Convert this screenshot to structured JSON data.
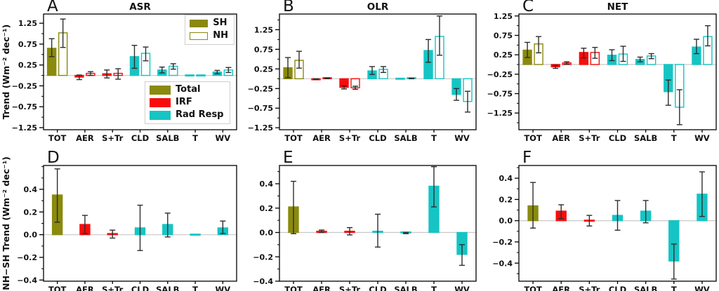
{
  "figure": {
    "background": "#ffffff"
  },
  "colors": {
    "total": "#8a8a0e",
    "irf": "#f80c0c",
    "rad_resp": "#16c4c4",
    "error": "#2e2e2e",
    "zero_line": "#c8c8c8",
    "spine": "#000000"
  },
  "legends": {
    "hemisphere": {
      "items": [
        {
          "label": "SH",
          "style": "filled"
        },
        {
          "label": "NH",
          "style": "open"
        }
      ]
    },
    "components": {
      "items": [
        {
          "label": "Total",
          "color": "total"
        },
        {
          "label": "IRF",
          "color": "irf"
        },
        {
          "label": "Rad Resp",
          "color": "rad_resp"
        }
      ]
    }
  },
  "chart_data": [
    {
      "id": "A",
      "letter": "A",
      "title": "ASR",
      "type": "bar",
      "ylabel": "Trend (Wm⁻² dec⁻¹)",
      "ylim": [
        -1.3,
        1.47
      ],
      "yticks": [
        1.25,
        0.75,
        0.25,
        -0.25,
        -0.75,
        -1.25
      ],
      "tick_decimals": 2,
      "minor_step": 0.25,
      "categories": [
        "TOT",
        "AER",
        "S+Tr",
        "CLD",
        "SALB",
        "T",
        "WV"
      ],
      "bar_color_keys": [
        "total",
        "irf",
        "irf",
        "rad_resp",
        "rad_resp",
        "rad_resp",
        "rad_resp"
      ],
      "series": [
        {
          "name": "SH",
          "style": "filled",
          "values": [
            0.65,
            -0.04,
            0.04,
            0.45,
            0.13,
            0.0,
            0.08
          ],
          "err_lo": [
            0.45,
            -0.1,
            -0.06,
            0.17,
            0.06,
            0.0,
            0.04
          ],
          "err_hi": [
            0.88,
            0.01,
            0.13,
            0.72,
            0.2,
            0.0,
            0.12
          ]
        },
        {
          "name": "NH",
          "style": "open",
          "values": [
            1.02,
            0.05,
            0.05,
            0.53,
            0.22,
            0.0,
            0.13
          ],
          "err_lo": [
            0.67,
            0.0,
            -0.09,
            0.35,
            0.15,
            0.0,
            0.07
          ],
          "err_hi": [
            1.35,
            0.09,
            0.16,
            0.68,
            0.28,
            0.0,
            0.19
          ]
        }
      ]
    },
    {
      "id": "B",
      "letter": "B",
      "title": "OLR",
      "type": "bar",
      "ylabel": "",
      "ylim": [
        -1.3,
        1.65
      ],
      "yticks": [
        1.25,
        0.75,
        0.25,
        -0.25,
        -0.75,
        -1.25
      ],
      "tick_decimals": 2,
      "minor_step": 0.25,
      "categories": [
        "TOT",
        "AER",
        "S+Tr",
        "CLD",
        "SALB",
        "T",
        "WV"
      ],
      "bar_color_keys": [
        "total",
        "irf",
        "irf",
        "rad_resp",
        "rad_resp",
        "rad_resp",
        "rad_resp"
      ],
      "series": [
        {
          "name": "SH",
          "style": "filled",
          "values": [
            0.28,
            -0.01,
            -0.22,
            0.2,
            0.0,
            0.72,
            -0.4
          ],
          "err_lo": [
            0.03,
            -0.02,
            -0.26,
            0.11,
            0.0,
            0.42,
            -0.55
          ],
          "err_hi": [
            0.54,
            0.0,
            -0.18,
            0.31,
            0.0,
            1.0,
            -0.25
          ]
        },
        {
          "name": "NH",
          "style": "open",
          "values": [
            0.47,
            0.01,
            -0.23,
            0.24,
            0.01,
            1.08,
            -0.58
          ],
          "err_lo": [
            0.27,
            0.0,
            -0.27,
            0.16,
            0.0,
            0.6,
            -0.85
          ],
          "err_hi": [
            0.7,
            0.02,
            -0.19,
            0.31,
            0.01,
            1.6,
            -0.32
          ]
        }
      ]
    },
    {
      "id": "C",
      "letter": "C",
      "title": "NET",
      "type": "bar",
      "ylabel": "",
      "ylim": [
        -1.68,
        1.3
      ],
      "yticks": [
        1.25,
        0.75,
        0.25,
        -0.25,
        -0.75,
        -1.25
      ],
      "tick_decimals": 2,
      "minor_step": 0.25,
      "categories": [
        "TOT",
        "AER",
        "S+Tr",
        "CLD",
        "SALB",
        "T",
        "WV"
      ],
      "bar_color_keys": [
        "total",
        "irf",
        "irf",
        "rad_resp",
        "rad_resp",
        "rad_resp",
        "rad_resp"
      ],
      "series": [
        {
          "name": "SH",
          "style": "filled",
          "values": [
            0.37,
            -0.06,
            0.31,
            0.24,
            0.13,
            -0.7,
            0.45
          ],
          "err_lo": [
            0.18,
            -0.1,
            0.17,
            0.1,
            0.07,
            -1.05,
            0.28
          ],
          "err_hi": [
            0.57,
            -0.02,
            0.42,
            0.38,
            0.19,
            -0.4,
            0.65
          ]
        },
        {
          "name": "NH",
          "style": "open",
          "values": [
            0.53,
            0.04,
            0.31,
            0.27,
            0.22,
            -1.1,
            0.72
          ],
          "err_lo": [
            0.3,
            0.01,
            0.16,
            0.08,
            0.15,
            -1.55,
            0.48
          ],
          "err_hi": [
            0.72,
            0.07,
            0.44,
            0.47,
            0.28,
            -0.65,
            1.0
          ]
        }
      ]
    },
    {
      "id": "D",
      "letter": "D",
      "title": "",
      "type": "bar",
      "ylabel": "NH−SH Trend (Wm⁻² dec⁻¹)",
      "ylim": [
        -0.41,
        0.61
      ],
      "yticks": [
        0.4,
        0.2,
        0.0,
        -0.2,
        -0.4
      ],
      "tick_decimals": 1,
      "minor_step": 0.1,
      "categories": [
        "TOT",
        "AER",
        "S+Tr",
        "CLD",
        "SALB",
        "T",
        "WV"
      ],
      "bar_color_keys": [
        "total",
        "irf",
        "irf",
        "rad_resp",
        "rad_resp",
        "rad_resp",
        "rad_resp"
      ],
      "series": [
        {
          "name": "NH−SH",
          "style": "filled",
          "values": [
            0.35,
            0.09,
            0.01,
            0.06,
            0.09,
            0.0,
            0.06
          ],
          "err_lo": [
            0.11,
            0.01,
            -0.03,
            -0.14,
            -0.02,
            0.0,
            0.01
          ],
          "err_hi": [
            0.58,
            0.17,
            0.04,
            0.26,
            0.19,
            0.0,
            0.12
          ]
        }
      ]
    },
    {
      "id": "E",
      "letter": "E",
      "title": "",
      "type": "bar",
      "ylabel": "",
      "ylim": [
        -0.4,
        0.55
      ],
      "yticks": [
        0.4,
        0.2,
        0.0,
        -0.2,
        -0.4
      ],
      "tick_decimals": 1,
      "minor_step": 0.1,
      "categories": [
        "TOT",
        "AER",
        "S+Tr",
        "CLD",
        "SALB",
        "T",
        "WV"
      ],
      "bar_color_keys": [
        "total",
        "irf",
        "irf",
        "rad_resp",
        "rad_resp",
        "rad_resp",
        "rad_resp"
      ],
      "series": [
        {
          "name": "NH−SH",
          "style": "filled",
          "values": [
            0.21,
            0.01,
            0.01,
            0.01,
            0.0,
            0.38,
            -0.18
          ],
          "err_lo": [
            -0.01,
            0.0,
            -0.02,
            -0.12,
            -0.01,
            0.21,
            -0.27
          ],
          "err_hi": [
            0.42,
            0.02,
            0.04,
            0.15,
            0.0,
            0.54,
            -0.1
          ]
        }
      ]
    },
    {
      "id": "F",
      "letter": "F",
      "title": "",
      "type": "bar",
      "ylabel": "",
      "ylim": [
        -0.57,
        0.52
      ],
      "yticks": [
        0.4,
        0.2,
        0.0,
        -0.2,
        -0.4
      ],
      "tick_decimals": 1,
      "minor_step": 0.1,
      "categories": [
        "TOT",
        "AER",
        "S+Tr",
        "CLD",
        "SALB",
        "T",
        "WV"
      ],
      "bar_color_keys": [
        "total",
        "irf",
        "irf",
        "rad_resp",
        "rad_resp",
        "rad_resp",
        "rad_resp"
      ],
      "series": [
        {
          "name": "NH−SH",
          "style": "filled",
          "values": [
            0.14,
            0.09,
            0.0,
            0.05,
            0.09,
            -0.38,
            0.25
          ],
          "err_lo": [
            -0.07,
            0.02,
            -0.05,
            -0.09,
            -0.02,
            -0.55,
            0.04
          ],
          "err_hi": [
            0.36,
            0.15,
            0.05,
            0.19,
            0.19,
            -0.22,
            0.46
          ]
        }
      ]
    }
  ]
}
